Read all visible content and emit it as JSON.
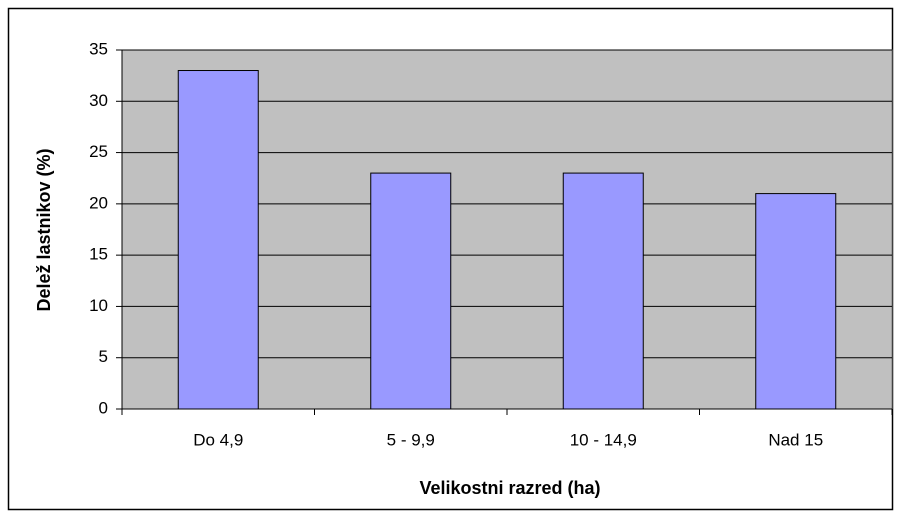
{
  "chart_data": {
    "type": "bar",
    "x_label": "Velikostni razred (ha)",
    "y_label": "Delež lastnikov (%)",
    "categories": [
      "Do 4,9",
      "5 -  9,9",
      "10 - 14,9",
      "Nad 15"
    ],
    "values": [
      33,
      23,
      23,
      21
    ],
    "color": "#9999ff",
    "ylim": [
      0,
      35
    ],
    "yticks": [
      0,
      5,
      10,
      15,
      20,
      25,
      30,
      35
    ],
    "grid": true
  }
}
